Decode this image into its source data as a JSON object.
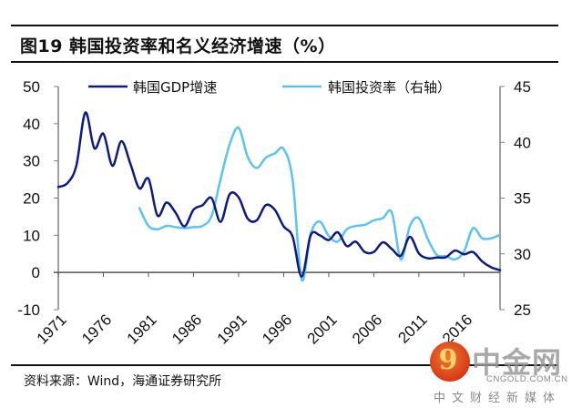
{
  "figure": {
    "title": "图19 韩国投资率和名义经济增速（%）",
    "source": "资料来源：Wind，海通证券研究所"
  },
  "watermark": {
    "glyph": "9",
    "name": "中金网",
    "domain": "CNGOLD.COM.CN",
    "tagline": "中文财经新媒体"
  },
  "colors": {
    "gdp": "#0d1b80",
    "investment": "#5cc3f0",
    "axis": "#808080",
    "zero_line": "#555555"
  },
  "chart_data": {
    "type": "line",
    "title": "图19 韩国投资率和名义经济增速（%）",
    "xlabel": "",
    "ylabel": "",
    "y2label": "",
    "x": [
      1971,
      1972,
      1973,
      1974,
      1975,
      1976,
      1977,
      1978,
      1979,
      1980,
      1981,
      1982,
      1983,
      1984,
      1985,
      1986,
      1987,
      1988,
      1989,
      1990,
      1991,
      1992,
      1993,
      1994,
      1995,
      1996,
      1997,
      1998,
      1999,
      2000,
      2001,
      2002,
      2003,
      2004,
      2005,
      2006,
      2007,
      2008,
      2009,
      2010,
      2011,
      2012,
      2013,
      2014,
      2015,
      2016,
      2017,
      2018,
      2019,
      2020
    ],
    "x_tick_labels": [
      "1971",
      "1976",
      "1981",
      "1986",
      "1991",
      "1996",
      "2001",
      "2006",
      "2011",
      "2016"
    ],
    "ylim": [
      -10,
      50
    ],
    "y_ticks": [
      -10,
      0,
      10,
      20,
      30,
      40,
      50
    ],
    "y2lim": [
      25,
      45
    ],
    "y2_ticks": [
      25,
      30,
      35,
      40,
      45
    ],
    "grid": false,
    "legend_position": "top",
    "series": [
      {
        "name": "韩国GDP增速",
        "axis": "left",
        "values": [
          23.0,
          24.0,
          28.7,
          43.0,
          33.4,
          37.3,
          28.7,
          35.3,
          29.2,
          22.6,
          25.2,
          15.3,
          18.8,
          16.1,
          12.4,
          16.9,
          18.1,
          20.0,
          13.6,
          21.0,
          20.2,
          14.5,
          14.0,
          18.1,
          16.9,
          12.4,
          9.6,
          -1.1,
          10.0,
          10.0,
          8.7,
          10.8,
          7.1,
          8.3,
          5.5,
          5.5,
          8.1,
          6.3,
          4.5,
          9.6,
          5.1,
          3.8,
          4.0,
          4.1,
          5.9,
          4.9,
          5.5,
          3.0,
          1.4,
          0.6
        ]
      },
      {
        "name": "韩国投资率（右轴）",
        "axis": "right",
        "values": [
          null,
          null,
          null,
          null,
          null,
          null,
          null,
          null,
          null,
          34.1,
          32.5,
          32.2,
          32.5,
          32.4,
          32.3,
          32.4,
          32.5,
          33.4,
          36.7,
          39.8,
          41.3,
          38.7,
          37.7,
          38.6,
          39.0,
          39.4,
          36.6,
          27.7,
          31.8,
          32.9,
          31.6,
          31.1,
          32.2,
          32.5,
          32.6,
          33.0,
          33.2,
          33.7,
          29.5,
          32.5,
          33.2,
          31.3,
          29.9,
          29.8,
          29.5,
          30.2,
          32.3,
          31.4,
          31.4,
          31.7
        ]
      }
    ]
  }
}
